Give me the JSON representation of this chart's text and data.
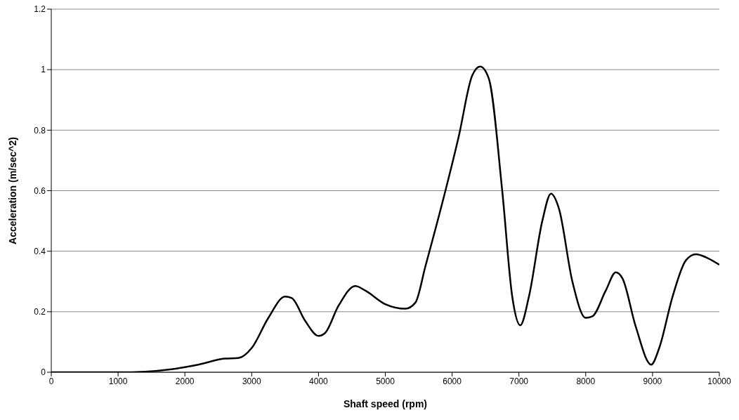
{
  "chart_data": {
    "type": "line",
    "xlabel": "Shaft speed (rpm)",
    "ylabel": "Acceleration (m/sec^2)",
    "x": [
      0,
      1000,
      1400,
      1800,
      2200,
      2600,
      2800,
      3000,
      3250,
      3500,
      3600,
      3800,
      4000,
      4100,
      4300,
      4550,
      4700,
      5000,
      5300,
      5450,
      5600,
      5900,
      6100,
      6300,
      6420,
      6550,
      6750,
      6900,
      7020,
      7150,
      7350,
      7480,
      7600,
      7800,
      8000,
      8100,
      8300,
      8450,
      8550,
      8750,
      8980,
      9100,
      9300,
      9500,
      9650,
      9800,
      10000
    ],
    "series": [
      {
        "color": "#000000",
        "values": [
          0,
          0,
          0.002,
          0.01,
          0.025,
          0.045,
          0.047,
          0.08,
          0.18,
          0.25,
          0.245,
          0.17,
          0.12,
          0.13,
          0.22,
          0.285,
          0.27,
          0.225,
          0.21,
          0.23,
          0.35,
          0.6,
          0.78,
          0.98,
          1.01,
          0.97,
          0.6,
          0.25,
          0.155,
          0.25,
          0.5,
          0.59,
          0.54,
          0.3,
          0.18,
          0.185,
          0.27,
          0.33,
          0.31,
          0.15,
          0.025,
          0.08,
          0.25,
          0.37,
          0.39,
          0.38,
          0.355
        ]
      }
    ],
    "xlim": [
      0,
      10000
    ],
    "xticks": [
      0,
      1000,
      2000,
      3000,
      4000,
      5000,
      6000,
      7000,
      8000,
      9000,
      10000
    ],
    "ylim": [
      0,
      1.2
    ],
    "yticks": [
      0,
      0.2,
      0.4,
      0.6,
      0.8,
      1,
      1.2
    ],
    "grid": "y",
    "marker": "none",
    "line_style": "solid",
    "legend": false
  }
}
